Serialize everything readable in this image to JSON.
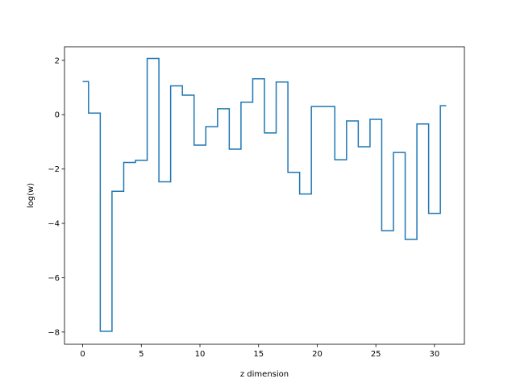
{
  "chart_data": {
    "type": "line",
    "drawstyle": "steps-mid",
    "title": "",
    "xlabel": "z dimension",
    "ylabel": "log(w)",
    "xlim": [
      -1.55,
      32.55
    ],
    "ylim": [
      -8.45,
      2.5
    ],
    "xticks": [
      0,
      5,
      10,
      15,
      20,
      25,
      30
    ],
    "yticks": [
      -8,
      -6,
      -4,
      -2,
      0,
      2
    ],
    "grid": false,
    "color": "#1f77b4",
    "series": [
      {
        "x": [
          0,
          1,
          2,
          3,
          4,
          5,
          6,
          7,
          8,
          9,
          10,
          11,
          12,
          13,
          14,
          15,
          16,
          17,
          18,
          19,
          20,
          21,
          22,
          23,
          24,
          25,
          26,
          27,
          28,
          29,
          30,
          31
        ],
        "y": [
          1.22,
          0.06,
          -7.97,
          -2.82,
          -1.76,
          -1.68,
          2.07,
          -2.47,
          1.06,
          0.72,
          -1.12,
          -0.44,
          0.22,
          -1.27,
          0.46,
          1.32,
          -0.67,
          1.2,
          -2.12,
          -2.92,
          0.3,
          0.3,
          -1.66,
          -0.23,
          -1.18,
          -0.17,
          -4.27,
          -1.39,
          -4.59,
          -0.34,
          -3.63,
          0.33
        ]
      }
    ]
  }
}
